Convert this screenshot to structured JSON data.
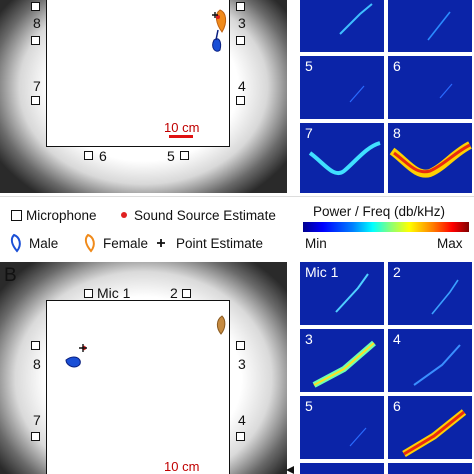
{
  "panelA": {
    "mic_labels": [
      "8",
      "7",
      "3",
      "4",
      "6",
      "5"
    ],
    "scalebar": "10 cm",
    "spectrograms": [
      {
        "num": "",
        "trace": "A1"
      },
      {
        "num": "",
        "trace": "A2"
      },
      {
        "num": "5",
        "trace": "A5"
      },
      {
        "num": "6",
        "trace": "A6"
      },
      {
        "num": "7",
        "trace": "A7"
      },
      {
        "num": "8",
        "trace": "A8"
      }
    ]
  },
  "legend": {
    "microphone": "Microphone",
    "sound_source": "Sound Source Estimate",
    "male": "Male",
    "female": "Female",
    "point_estimate": "Point Estimate",
    "colorbar_title": "Power / Freq (db/kHz)",
    "colorbar_min": "Min",
    "colorbar_max": "Max",
    "sound_source_color": "#e02020",
    "male_color": "#1a4fd6",
    "female_color": "#f08a1a"
  },
  "panelB": {
    "letter": "B",
    "mic_labels": [
      "Mic 1",
      "2",
      "8",
      "3",
      "7",
      "4"
    ],
    "scalebar": "10 cm",
    "spectrograms": [
      {
        "num": "Mic 1"
      },
      {
        "num": "2"
      },
      {
        "num": "3"
      },
      {
        "num": "4"
      },
      {
        "num": "5"
      },
      {
        "num": "6"
      }
    ]
  }
}
